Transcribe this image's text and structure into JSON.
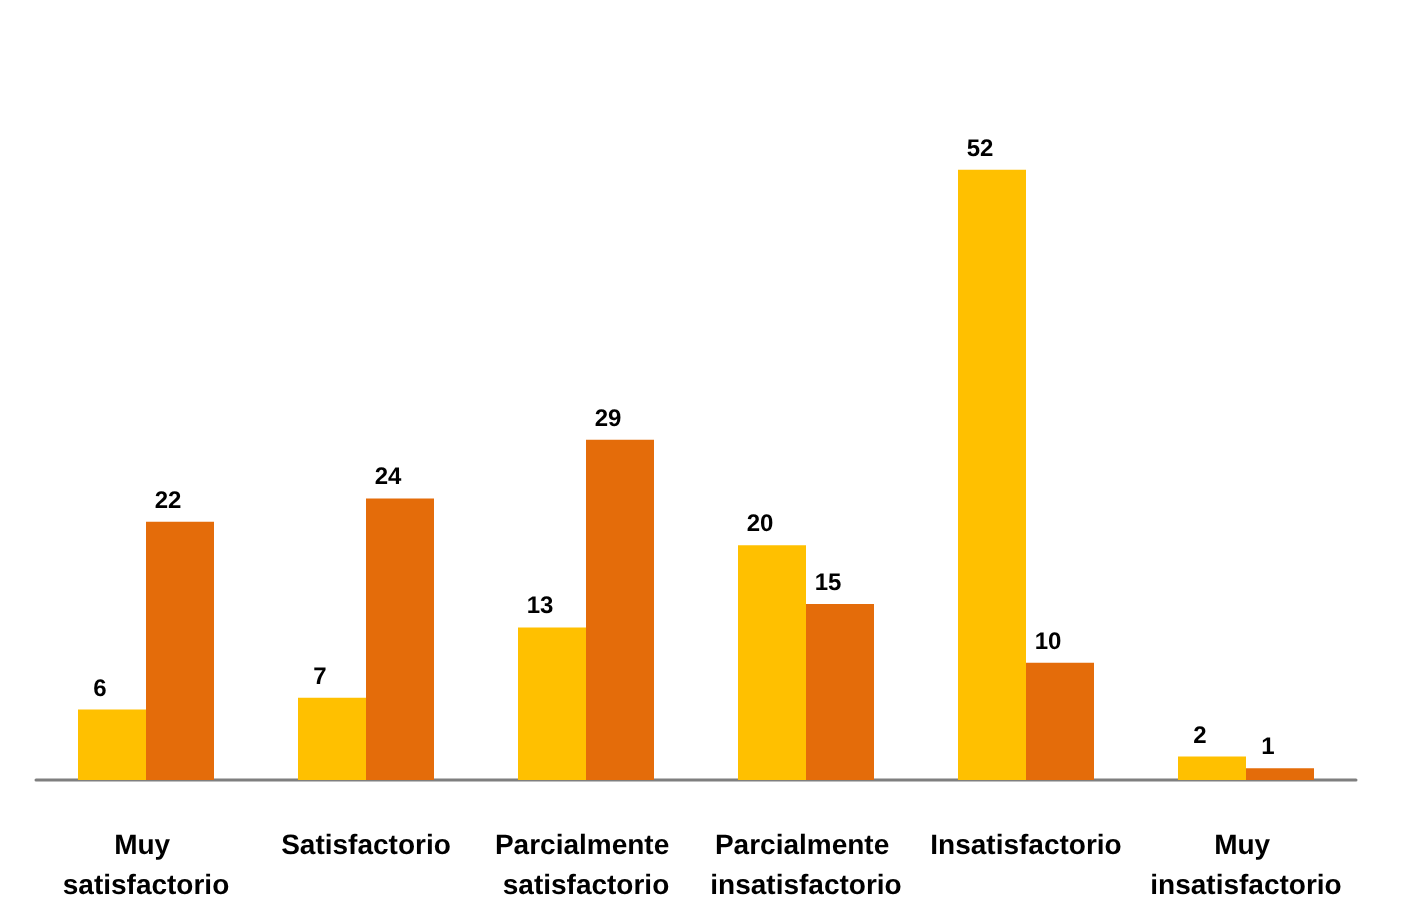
{
  "chart_data": {
    "type": "bar",
    "categories": [
      "Muy satisfactorio",
      "Satisfactorio",
      "Parcialmente satisfactorio",
      "Parcialmente insatisfactorio",
      "Insatisfactorio",
      "Muy insatisfactorio"
    ],
    "series": [
      {
        "color": "#ffc000",
        "values": [
          6,
          7,
          13,
          20,
          52,
          2
        ]
      },
      {
        "color": "#e46c0a",
        "values": [
          22,
          24,
          29,
          15,
          10,
          1
        ]
      }
    ],
    "data_labels": true
  }
}
